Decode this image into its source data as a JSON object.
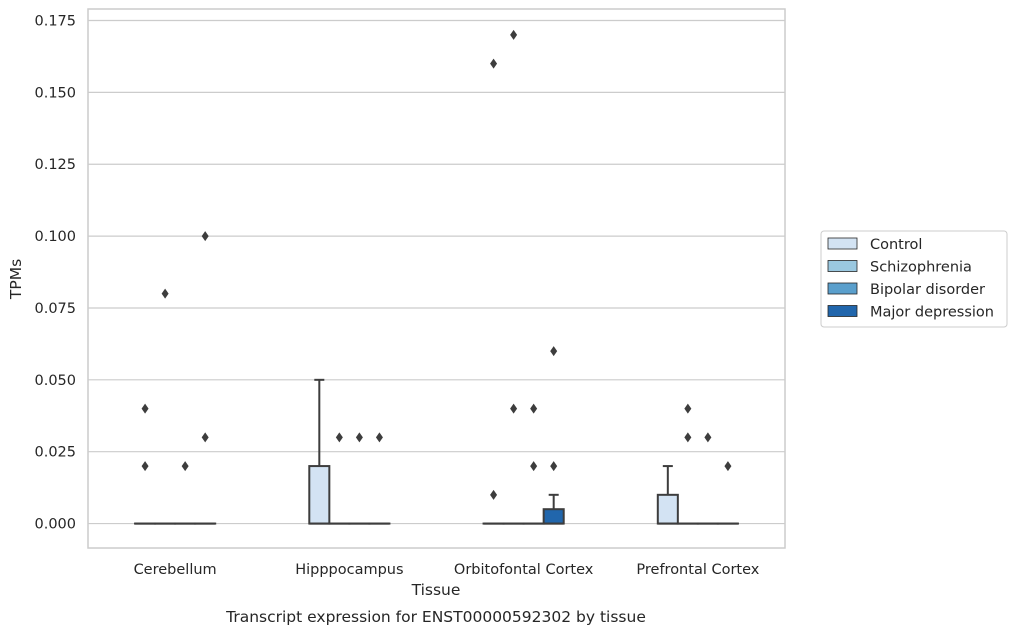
{
  "chart_data": {
    "type": "box",
    "xlabel": "Tissue",
    "ylabel": "TPMs",
    "caption": "Transcript expression for ENST00000592302 by tissue",
    "ylim": [
      -0.0085,
      0.179
    ],
    "yticks": [
      "0.000",
      "0.025",
      "0.050",
      "0.075",
      "0.100",
      "0.125",
      "0.150",
      "0.175"
    ],
    "grid": true,
    "legend_placement": "right",
    "categories": [
      "Cerebellum",
      "Hipppocampus",
      "Orbitofontal Cortex",
      "Prefrontal Cortex"
    ],
    "series": [
      {
        "name": "Control",
        "color": "#d3e3f3",
        "boxes": [
          {
            "q1": 0,
            "median": 0,
            "q3": 0,
            "whislo": 0,
            "whishi": 0,
            "fliers": [
              0.02,
              0.04
            ]
          },
          {
            "q1": 0,
            "median": 0,
            "q3": 0.02,
            "whislo": 0,
            "whishi": 0.05,
            "fliers": []
          },
          {
            "q1": 0,
            "median": 0,
            "q3": 0,
            "whislo": 0,
            "whishi": 0,
            "fliers": [
              0.01,
              0.16
            ]
          },
          {
            "q1": 0,
            "median": 0,
            "q3": 0.01,
            "whislo": 0,
            "whishi": 0.02,
            "fliers": []
          }
        ]
      },
      {
        "name": "Schizophrenia",
        "color": "#9ac8e0",
        "boxes": [
          {
            "q1": 0,
            "median": 0,
            "q3": 0,
            "whislo": 0,
            "whishi": 0,
            "fliers": [
              0.08
            ]
          },
          {
            "q1": 0,
            "median": 0,
            "q3": 0,
            "whislo": 0,
            "whishi": 0,
            "fliers": [
              0.03
            ]
          },
          {
            "q1": 0,
            "median": 0,
            "q3": 0,
            "whislo": 0,
            "whishi": 0,
            "fliers": [
              0.04,
              0.17
            ]
          },
          {
            "q1": 0,
            "median": 0,
            "q3": 0,
            "whislo": 0,
            "whishi": 0,
            "fliers": [
              0.03,
              0.04
            ]
          }
        ]
      },
      {
        "name": "Bipolar disorder",
        "color": "#5a9fcc",
        "boxes": [
          {
            "q1": 0,
            "median": 0,
            "q3": 0,
            "whislo": 0,
            "whishi": 0,
            "fliers": [
              0.02
            ]
          },
          {
            "q1": 0,
            "median": 0,
            "q3": 0,
            "whislo": 0,
            "whishi": 0,
            "fliers": [
              0.03
            ]
          },
          {
            "q1": 0,
            "median": 0,
            "q3": 0,
            "whislo": 0,
            "whishi": 0,
            "fliers": [
              0.02,
              0.04
            ]
          },
          {
            "q1": 0,
            "median": 0,
            "q3": 0,
            "whislo": 0,
            "whishi": 0,
            "fliers": [
              0.03
            ]
          }
        ]
      },
      {
        "name": "Major depression",
        "color": "#2166ac",
        "boxes": [
          {
            "q1": 0,
            "median": 0,
            "q3": 0,
            "whislo": 0,
            "whishi": 0,
            "fliers": [
              0.03,
              0.1
            ]
          },
          {
            "q1": 0,
            "median": 0,
            "q3": 0,
            "whislo": 0,
            "whishi": 0,
            "fliers": [
              0.03
            ]
          },
          {
            "q1": 0,
            "median": 0,
            "q3": 0.005,
            "whislo": 0,
            "whishi": 0.01,
            "fliers": [
              0.02,
              0.06
            ]
          },
          {
            "q1": 0,
            "median": 0,
            "q3": 0,
            "whislo": 0,
            "whishi": 0,
            "fliers": [
              0.02
            ]
          }
        ]
      }
    ]
  }
}
